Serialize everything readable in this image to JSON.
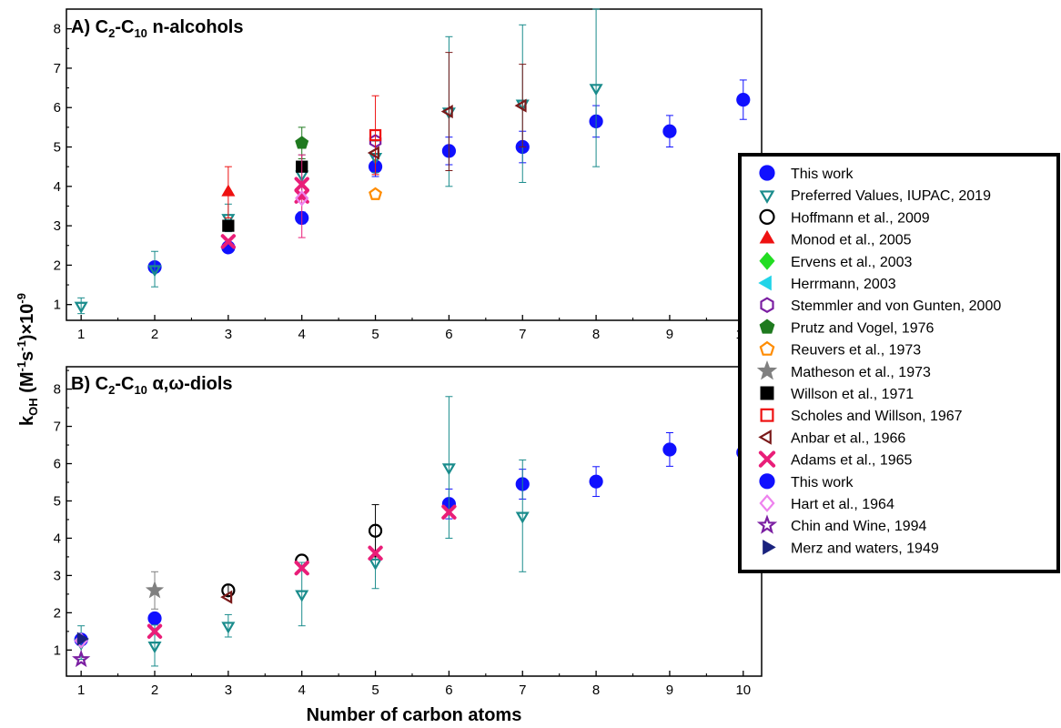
{
  "figure": {
    "panel_a_prefix": "A) C",
    "panel_a_sub1": "2",
    "panel_a_dash": "-C",
    "panel_a_sub2": "10",
    "panel_a_suffix": " n-alcohols",
    "panel_b_prefix": "B) C",
    "panel_b_sub1": "2",
    "panel_b_dash": "-C",
    "panel_b_sub2": "10",
    "panel_b_suffix": " α,ω-diols",
    "ylabel_k": "k",
    "ylabel_oh": "OH",
    "ylabel_paren": " (M",
    "ylabel_exp1": "-1",
    "ylabel_s": "s",
    "ylabel_exp2": "-1",
    "ylabel_tail": ")×10",
    "ylabel_exp3": "-9",
    "xlabel": "Number of carbon atoms"
  },
  "chart_data": [
    {
      "type": "scatter",
      "title": "A) C2-C10 n-alcohols",
      "xlabel": "",
      "ylabel": "kOH (M-1s-1)×10-9",
      "xlim": [
        0.8,
        10.25
      ],
      "ylim": [
        0.6,
        8.5
      ],
      "xticks": [
        1,
        2,
        3,
        4,
        5,
        6,
        7,
        8,
        9,
        10
      ],
      "yticks": [
        1,
        2,
        3,
        4,
        5,
        6,
        7,
        8
      ],
      "series": [
        {
          "name": "This work",
          "marker": "circle",
          "color": "#1010ff",
          "filled": true,
          "points": [
            {
              "x": 2,
              "y": 1.95,
              "err": 0.1
            },
            {
              "x": 3,
              "y": 2.45,
              "err": 0.12
            },
            {
              "x": 4,
              "y": 3.2,
              "err": 0.15
            },
            {
              "x": 5,
              "y": 4.5,
              "err": 0.25
            },
            {
              "x": 6,
              "y": 4.9,
              "err": 0.35
            },
            {
              "x": 7,
              "y": 5.0,
              "err": 0.4
            },
            {
              "x": 8,
              "y": 5.65,
              "err": 0.4
            },
            {
              "x": 9,
              "y": 5.4,
              "err": 0.4
            },
            {
              "x": 10,
              "y": 6.2,
              "err": 0.5
            }
          ]
        },
        {
          "name": "Preferred Values, IUPAC, 2019",
          "marker": "triangle-down",
          "color": "#1a8c8c",
          "filled": false,
          "points": [
            {
              "x": 1,
              "y": 0.97,
              "err": 0.2
            },
            {
              "x": 2,
              "y": 1.9,
              "err": 0.45
            },
            {
              "x": 3,
              "y": 3.2,
              "err": 0.35
            },
            {
              "x": 4,
              "y": 4.3,
              "err": 0.5
            },
            {
              "x": 5,
              "y": 4.75,
              "err": 0.4
            },
            {
              "x": 6,
              "y": 5.9,
              "err": 1.9
            },
            {
              "x": 7,
              "y": 6.1,
              "err": 2.0
            },
            {
              "x": 8,
              "y": 6.5,
              "err": 2.0
            }
          ]
        },
        {
          "name": "Hoffmann et al., 2009",
          "marker": "circle",
          "color": "#000000",
          "filled": false,
          "points": []
        },
        {
          "name": "Monod et al., 2005",
          "marker": "triangle-up",
          "color": "#ee1111",
          "filled": true,
          "points": [
            {
              "x": 3,
              "y": 3.85,
              "err": 0.65
            }
          ]
        },
        {
          "name": "Ervens et al., 2003",
          "marker": "diamond",
          "color": "#22dd22",
          "filled": true,
          "points": []
        },
        {
          "name": "Herrmann, 2003",
          "marker": "triangle-left",
          "color": "#22d4e8",
          "filled": true,
          "points": []
        },
        {
          "name": "Stemmler and von Gunten, 2000",
          "marker": "hexagon",
          "color": "#7b1fa2",
          "filled": false,
          "points": [
            {
              "x": 5,
              "y": 5.15
            }
          ]
        },
        {
          "name": "Prutz and Vogel, 1976",
          "marker": "pentagon",
          "color": "#1f7a1f",
          "filled": true,
          "points": [
            {
              "x": 4,
              "y": 5.1,
              "err": 0.4
            }
          ]
        },
        {
          "name": "Reuvers et al., 1973",
          "marker": "pentagon",
          "color": "#ff8c00",
          "filled": false,
          "points": [
            {
              "x": 5,
              "y": 3.8
            }
          ]
        },
        {
          "name": "Matheson et al., 1973",
          "marker": "star",
          "color": "#808080",
          "filled": true,
          "points": []
        },
        {
          "name": "Willson et al., 1971",
          "marker": "square",
          "color": "#000000",
          "filled": true,
          "points": [
            {
              "x": 3,
              "y": 3.0
            },
            {
              "x": 4,
              "y": 4.5
            }
          ]
        },
        {
          "name": "Scholes and Willson, 1967",
          "marker": "square",
          "color": "#ee1111",
          "filled": false,
          "points": [
            {
              "x": 5,
              "y": 5.3,
              "err": 1.0
            }
          ]
        },
        {
          "name": "Anbar et al., 1966",
          "marker": "triangle-left",
          "color": "#7a1a1a",
          "filled": false,
          "points": [
            {
              "x": 5,
              "y": 4.85
            },
            {
              "x": 6,
              "y": 5.9,
              "err": 1.5
            },
            {
              "x": 7,
              "y": 6.05,
              "err": 1.05
            }
          ]
        },
        {
          "name": "Adams et al., 1965",
          "marker": "x",
          "color": "#e91e78",
          "filled": true,
          "points": [
            {
              "x": 3,
              "y": 2.6
            },
            {
              "x": 4,
              "y": 3.75,
              "err": 1.05
            },
            {
              "x": 4,
              "y": 4.05
            }
          ]
        },
        {
          "name": "Hart et al., 1964",
          "marker": "diamond",
          "color": "#ee82ee",
          "filled": false,
          "points": [
            {
              "x": 4,
              "y": 3.7
            }
          ]
        }
      ]
    },
    {
      "type": "scatter",
      "title": "B) C2-C10 α,ω-diols",
      "xlabel": "Number of carbon atoms",
      "ylabel": "kOH (M-1s-1)×10-9",
      "xlim": [
        0.8,
        10.25
      ],
      "ylim": [
        0.3,
        8.6
      ],
      "xticks": [
        1,
        2,
        3,
        4,
        5,
        6,
        7,
        8,
        9,
        10
      ],
      "yticks": [
        1,
        2,
        3,
        4,
        5,
        6,
        7,
        8
      ],
      "series": [
        {
          "name": "This work",
          "marker": "circle",
          "color": "#1010ff",
          "filled": true,
          "points": [
            {
              "x": 1,
              "y": 1.28,
              "err": 0.1
            },
            {
              "x": 2,
              "y": 1.85,
              "err": 0.12
            },
            {
              "x": 6,
              "y": 4.92,
              "err": 0.4
            },
            {
              "x": 7,
              "y": 5.45,
              "err": 0.4
            },
            {
              "x": 8,
              "y": 5.52,
              "err": 0.4
            },
            {
              "x": 9,
              "y": 6.38,
              "err": 0.45
            },
            {
              "x": 10,
              "y": 6.3,
              "err": 0.45
            }
          ]
        },
        {
          "name": "Preferred Values, IUPAC, 2019",
          "marker": "triangle-down",
          "color": "#1a8c8c",
          "filled": false,
          "points": [
            {
              "x": 1,
              "y": 1.2,
              "err": 0.45
            },
            {
              "x": 2,
              "y": 1.12,
              "err": 0.55
            },
            {
              "x": 3,
              "y": 1.65,
              "err": 0.3
            },
            {
              "x": 4,
              "y": 2.5,
              "err": 0.85
            },
            {
              "x": 5,
              "y": 3.35,
              "err": 0.7
            },
            {
              "x": 6,
              "y": 5.9,
              "err": 1.9
            },
            {
              "x": 7,
              "y": 4.6,
              "err": 1.5
            }
          ]
        },
        {
          "name": "Hoffmann et al., 2009",
          "marker": "circle",
          "color": "#000000",
          "filled": false,
          "points": [
            {
              "x": 3,
              "y": 2.6,
              "err": 0.15
            },
            {
              "x": 4,
              "y": 3.4
            },
            {
              "x": 5,
              "y": 4.2,
              "err": 0.7
            }
          ]
        },
        {
          "name": "Matheson et al., 1973",
          "marker": "star",
          "color": "#808080",
          "filled": true,
          "points": [
            {
              "x": 2,
              "y": 2.6,
              "err": 0.5
            }
          ]
        },
        {
          "name": "Anbar et al., 1966",
          "marker": "triangle-left",
          "color": "#7a1a1a",
          "filled": false,
          "points": [
            {
              "x": 3,
              "y": 2.42
            }
          ]
        },
        {
          "name": "Adams et al., 1965",
          "marker": "x",
          "color": "#e91e78",
          "filled": true,
          "points": [
            {
              "x": 2,
              "y": 1.5
            },
            {
              "x": 4,
              "y": 3.2
            },
            {
              "x": 5,
              "y": 3.6
            },
            {
              "x": 6,
              "y": 4.7
            }
          ]
        },
        {
          "name": "Hart et al., 1964",
          "marker": "diamond",
          "color": "#ee82ee",
          "filled": false,
          "points": [
            {
              "x": 1,
              "y": 1.25
            }
          ]
        },
        {
          "name": "Chin and Wine, 1994",
          "marker": "star",
          "color": "#7b1fa2",
          "filled": false,
          "points": [
            {
              "x": 1,
              "y": 0.75
            }
          ]
        },
        {
          "name": "Merz and waters, 1949",
          "marker": "triangle-right",
          "color": "#1a237e",
          "filled": true,
          "points": [
            {
              "x": 1,
              "y": 1.3
            }
          ]
        }
      ]
    }
  ],
  "legend": {
    "placement": "right",
    "items": [
      {
        "label": "This work",
        "marker": "circle",
        "color": "#1010ff",
        "filled": true
      },
      {
        "label": "Preferred Values, IUPAC, 2019",
        "marker": "triangle-down",
        "color": "#1a8c8c",
        "filled": false
      },
      {
        "label": "Hoffmann et al., 2009",
        "marker": "circle",
        "color": "#000000",
        "filled": false
      },
      {
        "label": "Monod et al., 2005",
        "marker": "triangle-up",
        "color": "#ee1111",
        "filled": true
      },
      {
        "label": "Ervens et al., 2003",
        "marker": "diamond",
        "color": "#22dd22",
        "filled": true
      },
      {
        "label": "Herrmann, 2003",
        "marker": "triangle-left",
        "color": "#22d4e8",
        "filled": true
      },
      {
        "label": "Stemmler and von Gunten, 2000",
        "marker": "hexagon",
        "color": "#7b1fa2",
        "filled": false
      },
      {
        "label": "Prutz and Vogel, 1976",
        "marker": "pentagon",
        "color": "#1f7a1f",
        "filled": true
      },
      {
        "label": "Reuvers et al., 1973",
        "marker": "pentagon",
        "color": "#ff8c00",
        "filled": false
      },
      {
        "label": "Matheson et al., 1973",
        "marker": "star",
        "color": "#808080",
        "filled": true
      },
      {
        "label": "Willson et al., 1971",
        "marker": "square",
        "color": "#000000",
        "filled": true
      },
      {
        "label": "Scholes and Willson, 1967",
        "marker": "square",
        "color": "#ee1111",
        "filled": false
      },
      {
        "label": "Anbar et al., 1966",
        "marker": "triangle-left",
        "color": "#7a1a1a",
        "filled": false
      },
      {
        "label": "Adams et al., 1965",
        "marker": "x",
        "color": "#e91e78",
        "filled": true
      },
      {
        "label": "This work",
        "marker": "circle",
        "color": "#1010ff",
        "filled": true
      },
      {
        "label": "Hart et al., 1964",
        "marker": "diamond",
        "color": "#ee82ee",
        "filled": false
      },
      {
        "label": "Chin and Wine, 1994",
        "marker": "star",
        "color": "#7b1fa2",
        "filled": false
      },
      {
        "label": "Merz and waters, 1949",
        "marker": "triangle-right",
        "color": "#1a237e",
        "filled": true
      }
    ]
  }
}
